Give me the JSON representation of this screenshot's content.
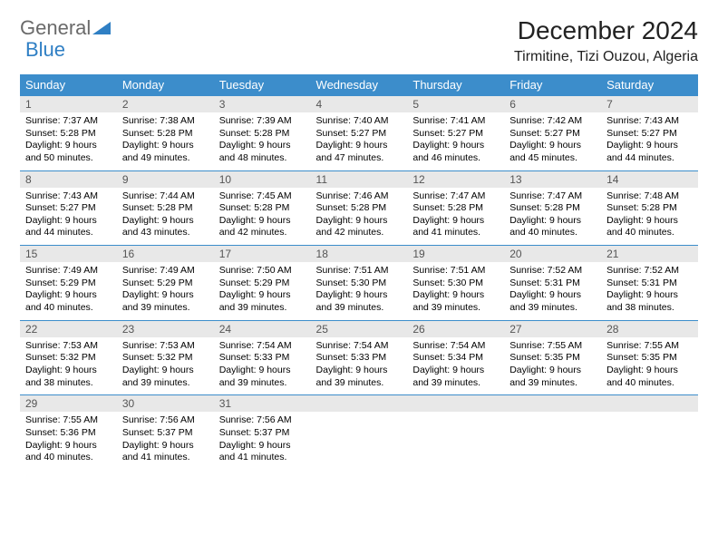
{
  "logo": {
    "part1": "General",
    "part2": "Blue"
  },
  "title": "December 2024",
  "location": "Tirmitine, Tizi Ouzou, Algeria",
  "colors": {
    "header_bg": "#3c8dcb",
    "header_text": "#ffffff",
    "daynum_bg": "#e8e8e8",
    "logo_blue": "#2f7fc4",
    "border": "#3c8dcb"
  },
  "weekdays": [
    "Sunday",
    "Monday",
    "Tuesday",
    "Wednesday",
    "Thursday",
    "Friday",
    "Saturday"
  ],
  "weeks": [
    [
      {
        "d": "1",
        "sr": "7:37 AM",
        "ss": "5:28 PM",
        "dl": "9 hours and 50 minutes."
      },
      {
        "d": "2",
        "sr": "7:38 AM",
        "ss": "5:28 PM",
        "dl": "9 hours and 49 minutes."
      },
      {
        "d": "3",
        "sr": "7:39 AM",
        "ss": "5:28 PM",
        "dl": "9 hours and 48 minutes."
      },
      {
        "d": "4",
        "sr": "7:40 AM",
        "ss": "5:27 PM",
        "dl": "9 hours and 47 minutes."
      },
      {
        "d": "5",
        "sr": "7:41 AM",
        "ss": "5:27 PM",
        "dl": "9 hours and 46 minutes."
      },
      {
        "d": "6",
        "sr": "7:42 AM",
        "ss": "5:27 PM",
        "dl": "9 hours and 45 minutes."
      },
      {
        "d": "7",
        "sr": "7:43 AM",
        "ss": "5:27 PM",
        "dl": "9 hours and 44 minutes."
      }
    ],
    [
      {
        "d": "8",
        "sr": "7:43 AM",
        "ss": "5:27 PM",
        "dl": "9 hours and 44 minutes."
      },
      {
        "d": "9",
        "sr": "7:44 AM",
        "ss": "5:28 PM",
        "dl": "9 hours and 43 minutes."
      },
      {
        "d": "10",
        "sr": "7:45 AM",
        "ss": "5:28 PM",
        "dl": "9 hours and 42 minutes."
      },
      {
        "d": "11",
        "sr": "7:46 AM",
        "ss": "5:28 PM",
        "dl": "9 hours and 42 minutes."
      },
      {
        "d": "12",
        "sr": "7:47 AM",
        "ss": "5:28 PM",
        "dl": "9 hours and 41 minutes."
      },
      {
        "d": "13",
        "sr": "7:47 AM",
        "ss": "5:28 PM",
        "dl": "9 hours and 40 minutes."
      },
      {
        "d": "14",
        "sr": "7:48 AM",
        "ss": "5:28 PM",
        "dl": "9 hours and 40 minutes."
      }
    ],
    [
      {
        "d": "15",
        "sr": "7:49 AM",
        "ss": "5:29 PM",
        "dl": "9 hours and 40 minutes."
      },
      {
        "d": "16",
        "sr": "7:49 AM",
        "ss": "5:29 PM",
        "dl": "9 hours and 39 minutes."
      },
      {
        "d": "17",
        "sr": "7:50 AM",
        "ss": "5:29 PM",
        "dl": "9 hours and 39 minutes."
      },
      {
        "d": "18",
        "sr": "7:51 AM",
        "ss": "5:30 PM",
        "dl": "9 hours and 39 minutes."
      },
      {
        "d": "19",
        "sr": "7:51 AM",
        "ss": "5:30 PM",
        "dl": "9 hours and 39 minutes."
      },
      {
        "d": "20",
        "sr": "7:52 AM",
        "ss": "5:31 PM",
        "dl": "9 hours and 39 minutes."
      },
      {
        "d": "21",
        "sr": "7:52 AM",
        "ss": "5:31 PM",
        "dl": "9 hours and 38 minutes."
      }
    ],
    [
      {
        "d": "22",
        "sr": "7:53 AM",
        "ss": "5:32 PM",
        "dl": "9 hours and 38 minutes."
      },
      {
        "d": "23",
        "sr": "7:53 AM",
        "ss": "5:32 PM",
        "dl": "9 hours and 39 minutes."
      },
      {
        "d": "24",
        "sr": "7:54 AM",
        "ss": "5:33 PM",
        "dl": "9 hours and 39 minutes."
      },
      {
        "d": "25",
        "sr": "7:54 AM",
        "ss": "5:33 PM",
        "dl": "9 hours and 39 minutes."
      },
      {
        "d": "26",
        "sr": "7:54 AM",
        "ss": "5:34 PM",
        "dl": "9 hours and 39 minutes."
      },
      {
        "d": "27",
        "sr": "7:55 AM",
        "ss": "5:35 PM",
        "dl": "9 hours and 39 minutes."
      },
      {
        "d": "28",
        "sr": "7:55 AM",
        "ss": "5:35 PM",
        "dl": "9 hours and 40 minutes."
      }
    ],
    [
      {
        "d": "29",
        "sr": "7:55 AM",
        "ss": "5:36 PM",
        "dl": "9 hours and 40 minutes."
      },
      {
        "d": "30",
        "sr": "7:56 AM",
        "ss": "5:37 PM",
        "dl": "9 hours and 41 minutes."
      },
      {
        "d": "31",
        "sr": "7:56 AM",
        "ss": "5:37 PM",
        "dl": "9 hours and 41 minutes."
      },
      null,
      null,
      null,
      null
    ]
  ],
  "labels": {
    "sunrise": "Sunrise:",
    "sunset": "Sunset:",
    "daylight": "Daylight:"
  }
}
